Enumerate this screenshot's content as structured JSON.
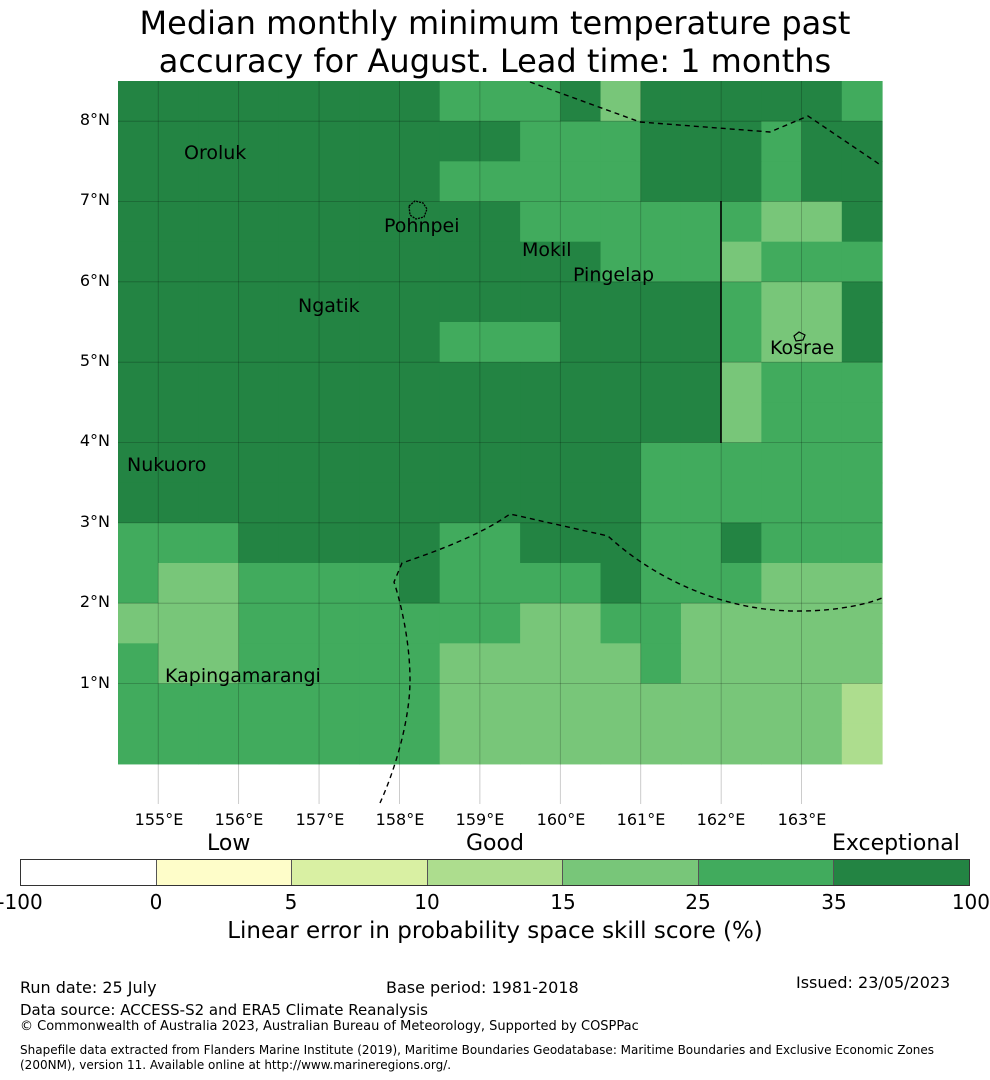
{
  "title": {
    "line1": "Median monthly minimum temperature past",
    "line2": "accuracy for August. Lead time: 1 months"
  },
  "lat_labels": [
    "8°N",
    "7°N",
    "6°N",
    "5°N",
    "4°N",
    "3°N",
    "2°N",
    "1°N"
  ],
  "lon_labels": [
    "155°E",
    "156°E",
    "157°E",
    "158°E",
    "159°E",
    "160°E",
    "161°E",
    "162°E",
    "163°E"
  ],
  "places": [
    "Oroluk",
    "Pohnpei",
    "Mokil",
    "Pingelap",
    "Ngatik",
    "Kosrae",
    "Nukuoro",
    "Kapingamarangi"
  ],
  "grid": {
    "lat_rows": [
      8.0,
      7.5,
      7.0,
      6.5,
      6.0,
      5.5,
      5.0,
      4.5,
      4.0,
      3.5,
      3.0,
      2.5,
      2.0,
      1.5,
      1.0,
      0.5,
      0.0
    ],
    "lon_cols": [
      154.5,
      155.0,
      155.5,
      156.0,
      156.5,
      157.0,
      157.5,
      158.0,
      158.5,
      159.0,
      159.5,
      160.0,
      160.5,
      161.0,
      161.5,
      162.0,
      162.5,
      163.0,
      163.5
    ],
    "class_rows": [
      [
        6,
        6,
        6,
        6,
        6,
        6,
        6,
        6,
        5,
        5,
        5,
        6,
        4,
        6,
        6,
        6,
        6,
        6,
        5
      ],
      [
        6,
        6,
        6,
        6,
        6,
        6,
        6,
        6,
        6,
        6,
        5,
        5,
        5,
        6,
        6,
        6,
        5,
        6,
        6
      ],
      [
        6,
        6,
        6,
        6,
        6,
        6,
        6,
        6,
        5,
        5,
        5,
        5,
        5,
        6,
        6,
        6,
        5,
        6,
        6
      ],
      [
        6,
        6,
        6,
        6,
        6,
        6,
        6,
        6,
        6,
        6,
        5,
        5,
        5,
        5,
        5,
        5,
        4,
        4,
        6
      ],
      [
        6,
        6,
        6,
        6,
        6,
        6,
        6,
        6,
        6,
        6,
        6,
        6,
        5,
        5,
        5,
        4,
        5,
        5,
        5
      ],
      [
        6,
        6,
        6,
        6,
        6,
        6,
        6,
        6,
        6,
        6,
        6,
        6,
        6,
        6,
        6,
        5,
        4,
        4,
        6
      ],
      [
        6,
        6,
        6,
        6,
        6,
        6,
        6,
        6,
        5,
        5,
        5,
        6,
        6,
        6,
        6,
        5,
        4,
        4,
        6
      ],
      [
        6,
        6,
        6,
        6,
        6,
        6,
        6,
        6,
        6,
        6,
        6,
        6,
        6,
        6,
        6,
        4,
        5,
        5,
        5
      ],
      [
        6,
        6,
        6,
        6,
        6,
        6,
        6,
        6,
        6,
        6,
        6,
        6,
        6,
        6,
        6,
        4,
        5,
        5,
        5
      ],
      [
        6,
        6,
        6,
        6,
        6,
        6,
        6,
        6,
        6,
        6,
        6,
        6,
        6,
        5,
        5,
        5,
        5,
        5,
        5
      ],
      [
        6,
        6,
        6,
        6,
        6,
        6,
        6,
        6,
        6,
        6,
        6,
        6,
        6,
        5,
        5,
        5,
        5,
        5,
        5
      ],
      [
        5,
        5,
        5,
        6,
        6,
        6,
        6,
        6,
        5,
        5,
        6,
        6,
        6,
        5,
        5,
        6,
        5,
        5,
        5
      ],
      [
        5,
        4,
        4,
        5,
        5,
        5,
        5,
        6,
        5,
        5,
        5,
        5,
        6,
        5,
        5,
        5,
        4,
        4,
        4
      ],
      [
        4,
        4,
        4,
        5,
        5,
        5,
        5,
        5,
        5,
        5,
        4,
        4,
        5,
        5,
        4,
        4,
        4,
        4,
        4
      ],
      [
        5,
        4,
        4,
        5,
        5,
        5,
        5,
        5,
        4,
        4,
        4,
        4,
        4,
        5,
        4,
        4,
        4,
        4,
        4
      ],
      [
        5,
        5,
        5,
        5,
        5,
        5,
        5,
        5,
        4,
        4,
        4,
        4,
        4,
        4,
        4,
        4,
        4,
        4,
        3
      ],
      [
        5,
        5,
        5,
        5,
        5,
        5,
        5,
        5,
        4,
        4,
        4,
        4,
        4,
        4,
        4,
        4,
        4,
        4,
        3
      ]
    ]
  },
  "colorbar": {
    "categories": [
      "Low",
      "Good",
      "Exceptional"
    ],
    "ticks": [
      "-100",
      "0",
      "5",
      "10",
      "15",
      "25",
      "35",
      "100"
    ],
    "colors": [
      "#ffffff",
      "#fefdc9",
      "#d9f0a3",
      "#addd8e",
      "#78c679",
      "#41ab5d",
      "#238443"
    ],
    "label": "Linear error in probability space skill score (%)"
  },
  "footer": {
    "run_date": "Run date: 25 July",
    "base_period": "Base period: 1981-2018",
    "issued": "Issued: 23/05/2023",
    "data_source": "Data source: ACCESS-S2 and ERA5 Climate Reanalysis",
    "copyright": "© Commonwealth of Australia 2023, Australian Bureau of Meteorology, Supported by COSPPac",
    "shapefile_line1": "Shapefile data extracted from Flanders Marine Institute (2019), Maritime Boundaries Geodatabase: Maritime Boundaries and Exclusive Economic Zones",
    "shapefile_line2": "(200NM), version 11. Available online at http://www.marineregions.org/."
  }
}
